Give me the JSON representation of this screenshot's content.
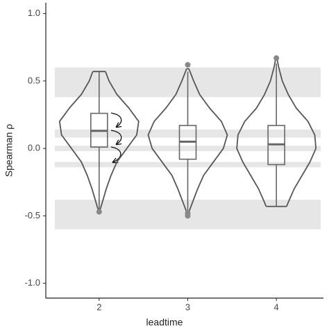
{
  "chart_data": {
    "type": "violin",
    "x_label": "leadtime",
    "y_label": "Spearman ρ",
    "categories": [
      "2",
      "3",
      "4"
    ],
    "ylim": [
      -1.11,
      1.08
    ],
    "yticks": [
      {
        "value": -1,
        "label": "-1.0"
      },
      -0.5,
      {
        "value": 0,
        "label": "0.0"
      },
      0.5,
      {
        "value": 1,
        "label": "1.0"
      }
    ],
    "bands": [
      [
        0.38,
        0.6
      ],
      [
        0.08,
        0.14
      ],
      [
        -0.02,
        0.02
      ],
      [
        -0.14,
        -0.1
      ],
      [
        -0.6,
        -0.38
      ]
    ],
    "band_color": "#e6e6e6",
    "violin_color": "#555555",
    "box_color": "#666666",
    "point_color": "#888888",
    "violins": [
      {
        "y": [
          0.57,
          0.5,
          0.4,
          0.3,
          0.2,
          0.1,
          0.0,
          -0.1,
          -0.2,
          -0.3,
          -0.4,
          -0.45
        ],
        "density": [
          0.16,
          0.25,
          0.45,
          0.75,
          1.0,
          0.95,
          0.7,
          0.45,
          0.3,
          0.18,
          0.08,
          0.03
        ]
      },
      {
        "y": [
          0.59,
          0.5,
          0.4,
          0.3,
          0.2,
          0.1,
          0.0,
          -0.1,
          -0.2,
          -0.3,
          -0.4,
          -0.47
        ],
        "density": [
          0.03,
          0.15,
          0.3,
          0.55,
          0.85,
          1.0,
          0.9,
          0.65,
          0.4,
          0.25,
          0.12,
          0.03
        ]
      },
      {
        "y": [
          0.66,
          0.6,
          0.5,
          0.4,
          0.3,
          0.2,
          0.1,
          0.0,
          -0.1,
          -0.2,
          -0.3,
          -0.4,
          -0.43
        ],
        "density": [
          0.02,
          0.06,
          0.15,
          0.3,
          0.5,
          0.8,
          0.97,
          1.0,
          0.85,
          0.65,
          0.45,
          0.3,
          0.26
        ]
      }
    ],
    "boxes": [
      {
        "min": -0.45,
        "q1": 0.01,
        "median": 0.13,
        "q3": 0.26,
        "max": 0.57,
        "outliers": [
          -0.47
        ]
      },
      {
        "min": -0.46,
        "q1": -0.08,
        "median": 0.05,
        "q3": 0.17,
        "max": 0.57,
        "outliers": [
          0.62,
          -0.48,
          -0.5
        ]
      },
      {
        "min": -0.43,
        "q1": -0.12,
        "median": 0.03,
        "q3": 0.17,
        "max": 0.63,
        "outliers": [
          0.67
        ]
      }
    ]
  }
}
